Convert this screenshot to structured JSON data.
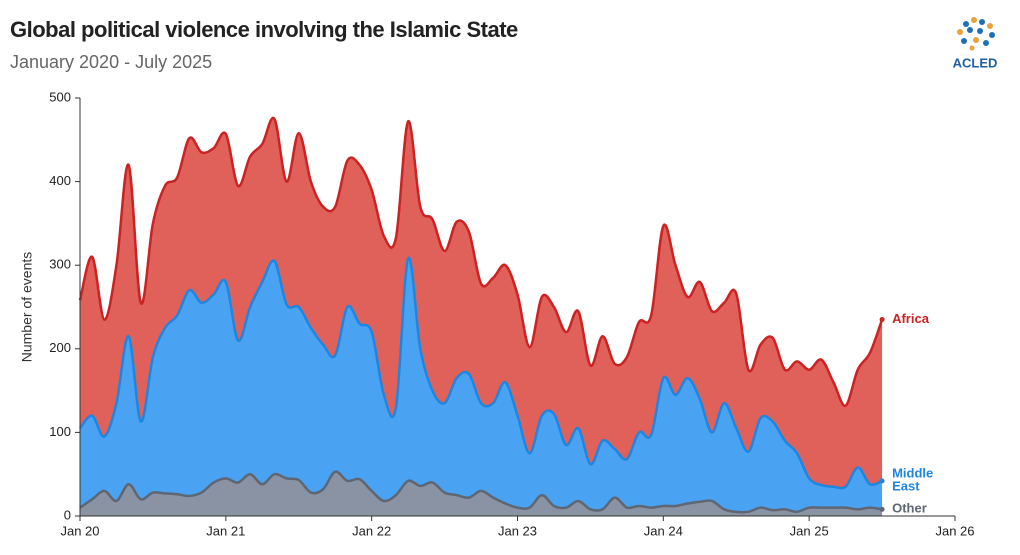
{
  "chart_data": {
    "type": "stacked_area",
    "title": "Global political violence involving the Islamic State",
    "subtitle": "January 2020 - July 2025",
    "logo_text": "ACLED",
    "ylabel": "Number of events",
    "x": [
      "2020-01",
      "2020-02",
      "2020-03",
      "2020-04",
      "2020-05",
      "2020-06",
      "2020-07",
      "2020-08",
      "2020-09",
      "2020-10",
      "2020-11",
      "2020-12",
      "2021-01",
      "2021-02",
      "2021-03",
      "2021-04",
      "2021-05",
      "2021-06",
      "2021-07",
      "2021-08",
      "2021-09",
      "2021-10",
      "2021-11",
      "2021-12",
      "2022-01",
      "2022-02",
      "2022-03",
      "2022-04",
      "2022-05",
      "2022-06",
      "2022-07",
      "2022-08",
      "2022-09",
      "2022-10",
      "2022-11",
      "2022-12",
      "2023-01",
      "2023-02",
      "2023-03",
      "2023-04",
      "2023-05",
      "2023-06",
      "2023-07",
      "2023-08",
      "2023-09",
      "2023-10",
      "2023-11",
      "2023-12",
      "2024-01",
      "2024-02",
      "2024-03",
      "2024-04",
      "2024-05",
      "2024-06",
      "2024-07",
      "2024-08",
      "2024-09",
      "2024-10",
      "2024-11",
      "2024-12",
      "2025-01",
      "2025-02",
      "2025-03",
      "2025-04",
      "2025-05",
      "2025-06",
      "2025-07"
    ],
    "series": [
      {
        "name": "Other",
        "color": "#5f6673",
        "fill": "#8a93a3",
        "values": [
          10,
          20,
          30,
          18,
          38,
          20,
          28,
          27,
          26,
          24,
          28,
          40,
          45,
          40,
          50,
          38,
          50,
          45,
          43,
          28,
          32,
          53,
          42,
          44,
          30,
          18,
          25,
          42,
          36,
          40,
          28,
          25,
          22,
          30,
          22,
          15,
          10,
          10,
          25,
          12,
          10,
          18,
          8,
          8,
          22,
          10,
          12,
          10,
          12,
          12,
          15,
          17,
          18,
          8,
          5,
          5,
          10,
          7,
          8,
          5,
          10,
          10,
          10,
          10,
          8,
          10,
          8
        ]
      },
      {
        "name": "Middle East",
        "color": "#1f86e0",
        "fill": "#4aa3f2",
        "values": [
          95,
          100,
          65,
          117,
          177,
          93,
          162,
          198,
          214,
          246,
          227,
          225,
          235,
          170,
          200,
          242,
          255,
          208,
          207,
          197,
          173,
          139,
          208,
          186,
          190,
          127,
          105,
          266,
          164,
          110,
          107,
          140,
          148,
          105,
          113,
          145,
          110,
          65,
          95,
          110,
          75,
          87,
          54,
          82,
          58,
          58,
          88,
          87,
          153,
          133,
          150,
          123,
          82,
          127,
          100,
          72,
          107,
          106,
          82,
          70,
          35,
          27,
          25,
          25,
          50,
          28,
          34
        ]
      },
      {
        "name": "Africa",
        "color": "#cc2222",
        "fill": "#e0605a",
        "values": [
          153,
          190,
          140,
          165,
          205,
          142,
          160,
          170,
          165,
          182,
          180,
          175,
          177,
          185,
          180,
          165,
          170,
          147,
          208,
          175,
          165,
          178,
          175,
          190,
          170,
          190,
          203,
          164,
          170,
          205,
          182,
          187,
          170,
          143,
          150,
          140,
          145,
          127,
          142,
          128,
          135,
          140,
          118,
          125,
          102,
          122,
          132,
          143,
          182,
          155,
          97,
          140,
          145,
          120,
          161,
          98,
          88,
          100,
          85,
          110,
          130,
          150,
          125,
          97,
          117,
          157,
          193
        ]
      }
    ],
    "xlim": [
      "2020-01",
      "2026-01"
    ],
    "xticks": [
      {
        "value": "2020-01",
        "label": "Jan 20"
      },
      {
        "value": "2021-01",
        "label": "Jan 21"
      },
      {
        "value": "2022-01",
        "label": "Jan 22"
      },
      {
        "value": "2023-01",
        "label": "Jan 23"
      },
      {
        "value": "2024-01",
        "label": "Jan 24"
      },
      {
        "value": "2025-01",
        "label": "Jan 25"
      },
      {
        "value": "2026-01",
        "label": "Jan 26"
      }
    ],
    "ylim": [
      0,
      500
    ],
    "yticks": [
      0,
      100,
      200,
      300,
      400,
      500
    ],
    "grid": false
  }
}
